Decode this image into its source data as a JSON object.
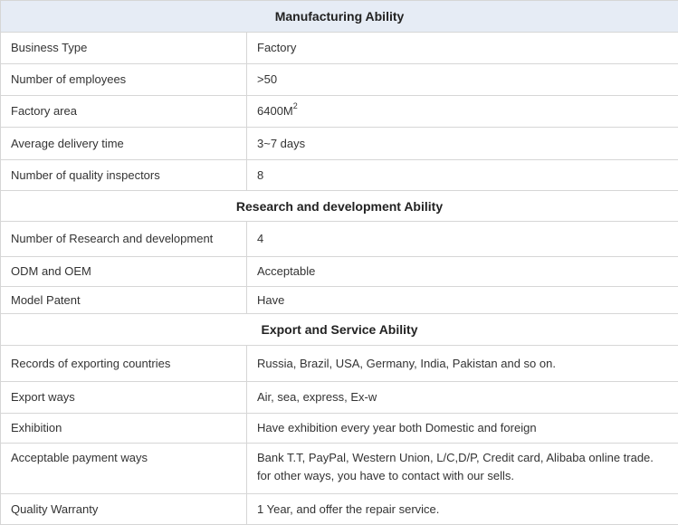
{
  "sections": {
    "manufacturing": {
      "title": "Manufacturing Ability",
      "rows": [
        {
          "label": "Business Type",
          "value": "Factory"
        },
        {
          "label": "Number of employees",
          "value": ">50"
        },
        {
          "label": "Factory area",
          "value": "6400M",
          "sup": "2"
        },
        {
          "label": "Average delivery time",
          "value": "3~7 days"
        },
        {
          "label": "Number of quality inspectors",
          "value": "8"
        }
      ]
    },
    "research": {
      "title": "Research and development Ability",
      "rows": [
        {
          "label": "Number of Research and development",
          "value": "4"
        },
        {
          "label": "ODM and OEM",
          "value": "Acceptable"
        },
        {
          "label": "Model Patent",
          "value": "Have"
        }
      ]
    },
    "export": {
      "title": "Export and Service Ability",
      "rows": [
        {
          "label": "Records of exporting countries",
          "value": "Russia, Brazil, USA, Germany, India, Pakistan and so on."
        },
        {
          "label": "Export ways",
          "value": "Air, sea, express, Ex-w"
        },
        {
          "label": "Exhibition",
          "value": "Have exhibition every year both Domestic and foreign"
        },
        {
          "label": "Acceptable payment ways",
          "value": "Bank T.T, PayPal, Western Union, L/C,D/P, Credit card, Alibaba online trade.",
          "value_line2": "for other ways, you have to contact with our sells."
        },
        {
          "label": "Quality Warranty",
          "value": "1 Year, and offer the repair service."
        }
      ]
    }
  }
}
